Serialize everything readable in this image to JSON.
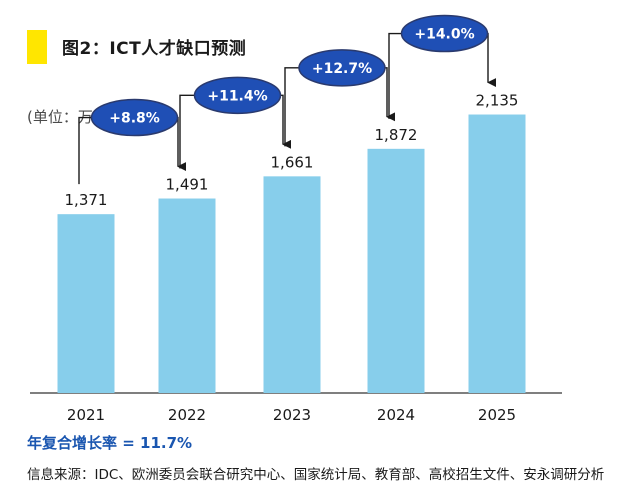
{
  "figure": {
    "title": "图2：ICT人才缺口预测",
    "unit": "(单位：万人)",
    "cagr_text": "年复合增长率 = 11.7%",
    "source_text": "信息来源：IDC、欧洲委员会联合研究中心、国家统计局、教育部、高校招生文件、安永调研分析"
  },
  "colors": {
    "accent": "#FFE600",
    "bar": "#87CEEB",
    "bubble": "#1F4FB5",
    "bubble_stroke": "#2A3A6E",
    "axis": "#333333",
    "arrow": "#1a1a1a"
  },
  "chart_data": {
    "type": "bar",
    "categories": [
      "2021",
      "2022",
      "2023",
      "2024",
      "2025"
    ],
    "values": [
      1371,
      1491,
      1661,
      1872,
      2135
    ],
    "value_labels": [
      "1,371",
      "1,491",
      "1,661",
      "1,872",
      "2,135"
    ],
    "growth_labels": [
      "+8.8%",
      "+11.4%",
      "+12.7%",
      "+14.0%"
    ],
    "ylim": [
      0,
      2300
    ],
    "grid": false,
    "legend": "none"
  }
}
